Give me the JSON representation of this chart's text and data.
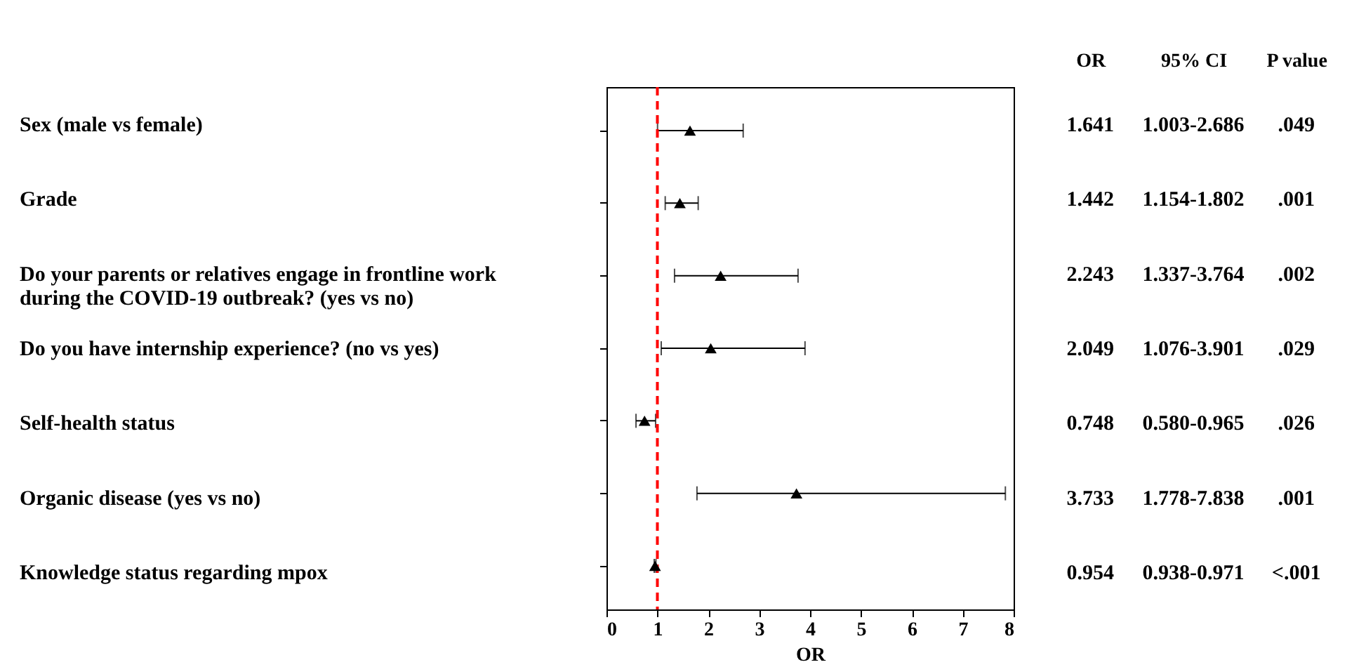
{
  "chart_data": {
    "type": "scatter",
    "orientation": "horizontal",
    "xlabel": "OR",
    "categories": [
      "Sex (male vs female)",
      "Grade",
      "Do your parents or relatives engage in frontline work during the COVID-19 outbreak? (yes vs no)",
      "Do you have internship experience? (no vs yes)",
      "Self-health status",
      "Organic disease (yes vs no)",
      "Knowledge status regarding mpox"
    ],
    "values": [
      1.641,
      1.442,
      2.243,
      2.049,
      0.748,
      3.733,
      0.954
    ],
    "errors": [
      [
        1.003,
        2.686
      ],
      [
        1.154,
        1.802
      ],
      [
        1.337,
        3.764
      ],
      [
        1.076,
        3.901
      ],
      [
        0.58,
        0.965
      ],
      [
        1.778,
        7.838
      ],
      [
        0.938,
        0.971
      ]
    ],
    "value_labels": [
      "1.641",
      "1.442",
      "2.243",
      "2.049",
      "0.748",
      "3.733",
      "0.954"
    ],
    "color": "#000000",
    "marker": "triangle",
    "grid": false,
    "xlim": [
      0,
      8
    ],
    "xticks": [
      0,
      1,
      2,
      3,
      4,
      5,
      6,
      7,
      8
    ],
    "ref_lines": [
      {
        "axis": "x",
        "value": 1,
        "color": "#ff0000",
        "line_style": "dashed"
      }
    ],
    "annotations": [
      "OR",
      "95% CI",
      "P value",
      "1.003-2.686",
      ".049",
      "1.154-1.802",
      ".001",
      "1.337-3.764",
      ".002",
      "1.076-3.901",
      ".029",
      "0.580-0.965",
      ".026",
      "1.778-7.838",
      ".001",
      "0.938-0.971",
      "<.001"
    ]
  }
}
